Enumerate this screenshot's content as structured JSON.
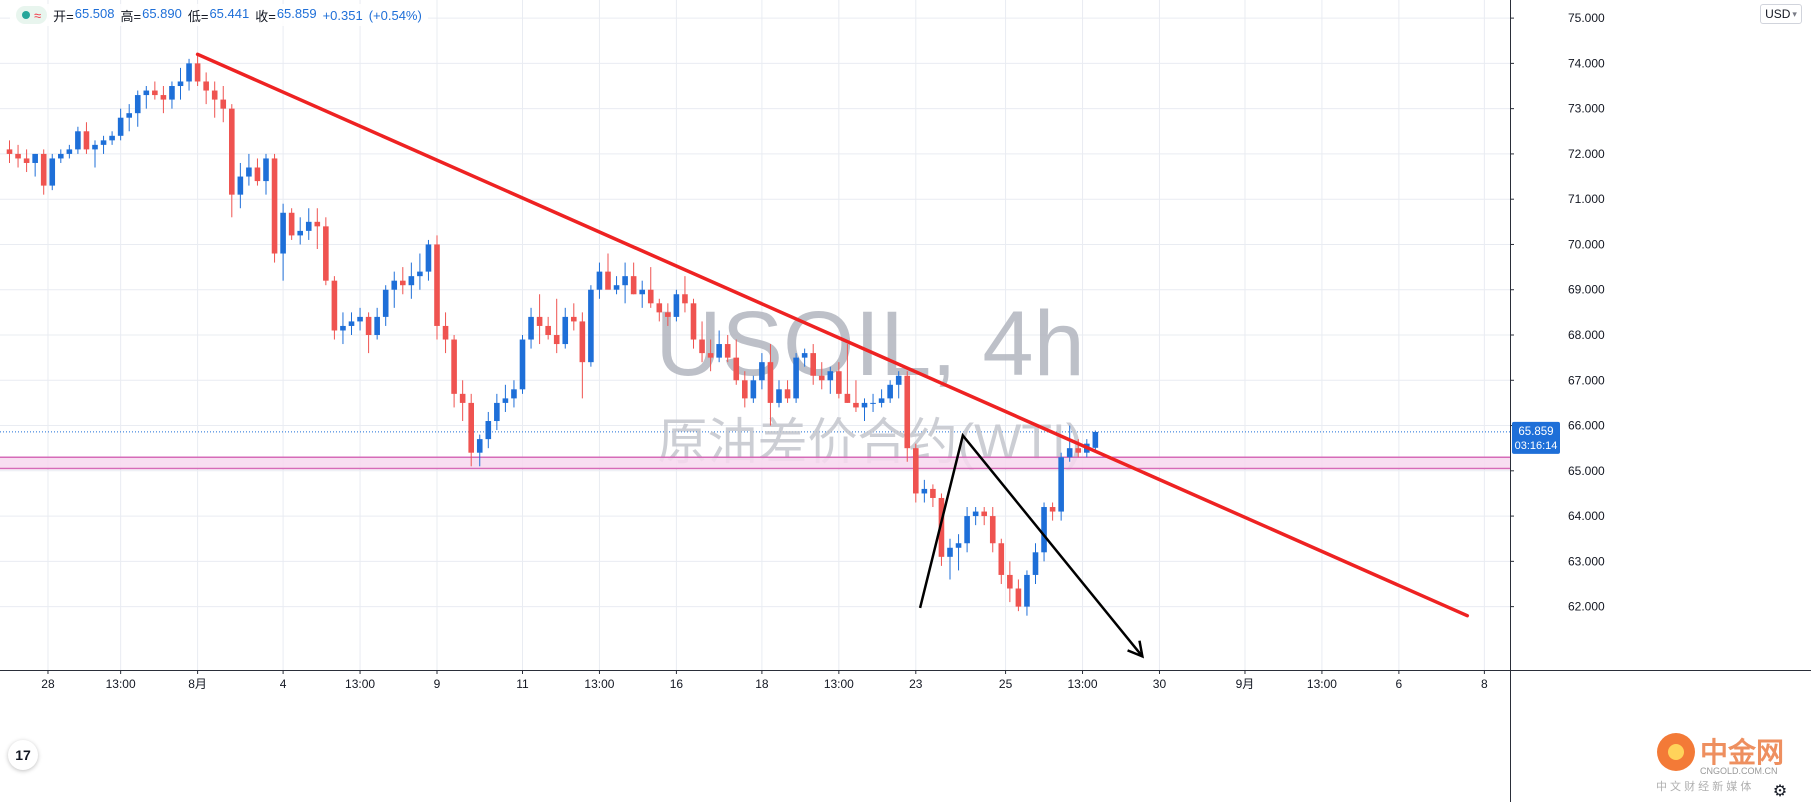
{
  "header": {
    "status_wave": "≈",
    "open_label": "开=",
    "open_value": "65.508",
    "high_label": "高=",
    "high_value": "65.890",
    "low_label": "低=",
    "low_value": "65.441",
    "close_label": "收=",
    "close_value": "65.859",
    "change_value": "+0.351",
    "change_pct": "(+0.54%)"
  },
  "currency": {
    "label": "USD",
    "caret": "▾"
  },
  "watermark": {
    "line1": "USOIL, 4h",
    "line2": "原油差价合约(WTI)"
  },
  "current_price": {
    "value": "65.859",
    "countdown": "03:16:14"
  },
  "logo": {
    "tv_text": "17",
    "cngold_name": "中金网",
    "cngold_url": "CNGOLD.COM.CN",
    "cngold_sub": "中 文 财 经 新 媒 体"
  },
  "colors": {
    "up": "#1e6fd8",
    "down": "#ef5350",
    "trendline": "#ee2222",
    "projection": "#000000",
    "zone_fill": "#f7d8ee",
    "zone_border": "#d66bb8",
    "price_tag": "#1e6fd8",
    "grid": "#e9ecf2"
  },
  "chart_data": {
    "type": "candlestick",
    "symbol": "USOIL",
    "interval": "4h",
    "ylim": [
      60.6,
      75.4
    ],
    "y_ticks": [
      62,
      63,
      64,
      65,
      66,
      67,
      68,
      69,
      70,
      71,
      72,
      73,
      74,
      75
    ],
    "y_tick_labels": [
      "62.000",
      "63.000",
      "64.000",
      "65.000",
      "66.000",
      "67.000",
      "68.000",
      "69.000",
      "70.000",
      "71.000",
      "72.000",
      "73.000",
      "74.000",
      "75.000"
    ],
    "x_ticks": [
      {
        "bar": 4.5,
        "label": "28"
      },
      {
        "bar": 13,
        "label": "13:00"
      },
      {
        "bar": 22,
        "label": "8月"
      },
      {
        "bar": 32,
        "label": "4"
      },
      {
        "bar": 41,
        "label": "13:00"
      },
      {
        "bar": 50,
        "label": "9"
      },
      {
        "bar": 60,
        "label": "11"
      },
      {
        "bar": 69,
        "label": "13:00"
      },
      {
        "bar": 78,
        "label": "16"
      },
      {
        "bar": 88,
        "label": "18"
      },
      {
        "bar": 97,
        "label": "13:00"
      },
      {
        "bar": 106,
        "label": "23"
      },
      {
        "bar": 116.5,
        "label": "25"
      },
      {
        "bar": 125.5,
        "label": "13:00"
      },
      {
        "bar": 134.5,
        "label": "30"
      },
      {
        "bar": 144.5,
        "label": "9月"
      },
      {
        "bar": 153.5,
        "label": "13:00"
      },
      {
        "bar": 162.5,
        "label": "6"
      },
      {
        "bar": 172.5,
        "label": "8"
      }
    ],
    "candles": [
      [
        72.1,
        72.3,
        71.8,
        72.0
      ],
      [
        72.0,
        72.2,
        71.7,
        71.9
      ],
      [
        71.9,
        72.1,
        71.6,
        71.8
      ],
      [
        71.8,
        72.0,
        71.5,
        72.0
      ],
      [
        72.0,
        72.1,
        71.1,
        71.3
      ],
      [
        71.3,
        72.0,
        71.2,
        71.9
      ],
      [
        71.9,
        72.1,
        71.8,
        72.0
      ],
      [
        72.0,
        72.2,
        71.9,
        72.1
      ],
      [
        72.1,
        72.6,
        72.0,
        72.5
      ],
      [
        72.5,
        72.7,
        72.0,
        72.1
      ],
      [
        72.1,
        72.3,
        71.7,
        72.2
      ],
      [
        72.2,
        72.4,
        72.0,
        72.3
      ],
      [
        72.3,
        72.5,
        72.2,
        72.4
      ],
      [
        72.4,
        73.0,
        72.3,
        72.8
      ],
      [
        72.8,
        73.1,
        72.5,
        72.9
      ],
      [
        72.9,
        73.4,
        72.6,
        73.3
      ],
      [
        73.3,
        73.5,
        73.0,
        73.4
      ],
      [
        73.4,
        73.6,
        73.2,
        73.3
      ],
      [
        73.3,
        73.5,
        72.9,
        73.2
      ],
      [
        73.2,
        73.6,
        73.0,
        73.5
      ],
      [
        73.5,
        73.9,
        73.2,
        73.6
      ],
      [
        73.6,
        74.1,
        73.4,
        74.0
      ],
      [
        74.0,
        74.2,
        73.5,
        73.6
      ],
      [
        73.6,
        73.8,
        73.1,
        73.4
      ],
      [
        73.4,
        73.6,
        72.8,
        73.2
      ],
      [
        73.2,
        73.5,
        72.7,
        73.0
      ],
      [
        73.0,
        73.1,
        70.6,
        71.1
      ],
      [
        71.1,
        71.8,
        70.8,
        71.5
      ],
      [
        71.5,
        72.0,
        71.3,
        71.7
      ],
      [
        71.7,
        71.9,
        71.3,
        71.4
      ],
      [
        71.4,
        72.0,
        71.1,
        71.9
      ],
      [
        71.9,
        72.0,
        69.6,
        69.8
      ],
      [
        69.8,
        70.9,
        69.2,
        70.7
      ],
      [
        70.7,
        70.8,
        70.1,
        70.2
      ],
      [
        70.2,
        70.6,
        70.0,
        70.3
      ],
      [
        70.3,
        70.8,
        70.1,
        70.5
      ],
      [
        70.5,
        70.8,
        69.9,
        70.4
      ],
      [
        70.4,
        70.6,
        69.1,
        69.2
      ],
      [
        69.2,
        69.3,
        67.9,
        68.1
      ],
      [
        68.1,
        68.5,
        67.8,
        68.2
      ],
      [
        68.2,
        68.5,
        68.0,
        68.3
      ],
      [
        68.3,
        68.6,
        68.1,
        68.4
      ],
      [
        68.4,
        68.5,
        67.6,
        68.0
      ],
      [
        68.0,
        68.6,
        67.9,
        68.4
      ],
      [
        68.4,
        69.1,
        68.2,
        69.0
      ],
      [
        69.0,
        69.4,
        68.6,
        69.2
      ],
      [
        69.2,
        69.5,
        68.9,
        69.1
      ],
      [
        69.1,
        69.6,
        68.8,
        69.3
      ],
      [
        69.3,
        69.8,
        69.0,
        69.4
      ],
      [
        69.4,
        70.1,
        69.2,
        70.0
      ],
      [
        70.0,
        70.2,
        67.9,
        68.2
      ],
      [
        68.2,
        68.5,
        67.6,
        67.9
      ],
      [
        67.9,
        68.0,
        66.4,
        66.7
      ],
      [
        66.7,
        67.0,
        66.1,
        66.5
      ],
      [
        66.5,
        66.7,
        65.1,
        65.4
      ],
      [
        65.4,
        65.8,
        65.1,
        65.7
      ],
      [
        65.7,
        66.3,
        65.5,
        66.1
      ],
      [
        66.1,
        66.7,
        65.9,
        66.5
      ],
      [
        66.5,
        66.9,
        66.3,
        66.6
      ],
      [
        66.6,
        67.0,
        66.4,
        66.8
      ],
      [
        66.8,
        68.0,
        66.7,
        67.9
      ],
      [
        67.9,
        68.6,
        67.7,
        68.4
      ],
      [
        68.4,
        68.9,
        67.8,
        68.2
      ],
      [
        68.2,
        68.4,
        67.9,
        68.0
      ],
      [
        68.0,
        68.8,
        67.6,
        67.8
      ],
      [
        67.8,
        68.6,
        67.7,
        68.4
      ],
      [
        68.4,
        68.7,
        68.1,
        68.3
      ],
      [
        68.3,
        68.5,
        66.6,
        67.4
      ],
      [
        67.4,
        69.1,
        67.3,
        69.0
      ],
      [
        69.0,
        69.6,
        68.8,
        69.4
      ],
      [
        69.4,
        69.8,
        69.1,
        69.0
      ],
      [
        69.0,
        69.3,
        68.9,
        69.1
      ],
      [
        69.1,
        69.6,
        68.7,
        69.3
      ],
      [
        69.3,
        69.6,
        68.9,
        68.9
      ],
      [
        68.9,
        69.2,
        68.6,
        69.0
      ],
      [
        69.0,
        69.5,
        68.6,
        68.7
      ],
      [
        68.7,
        68.8,
        68.3,
        68.5
      ],
      [
        68.5,
        68.7,
        68.2,
        68.4
      ],
      [
        68.4,
        69.0,
        68.3,
        68.9
      ],
      [
        68.9,
        69.3,
        68.5,
        68.7
      ],
      [
        68.7,
        68.8,
        67.7,
        67.9
      ],
      [
        67.9,
        68.3,
        67.4,
        67.6
      ],
      [
        67.6,
        67.9,
        67.2,
        67.5
      ],
      [
        67.5,
        68.1,
        67.4,
        67.8
      ],
      [
        67.8,
        68.0,
        67.4,
        67.5
      ],
      [
        67.5,
        67.9,
        66.9,
        67.0
      ],
      [
        67.0,
        67.2,
        66.4,
        66.6
      ],
      [
        66.6,
        67.1,
        66.5,
        67.0
      ],
      [
        67.0,
        67.6,
        66.8,
        67.4
      ],
      [
        67.4,
        67.8,
        66.0,
        66.5
      ],
      [
        66.5,
        67.0,
        66.4,
        66.8
      ],
      [
        66.8,
        67.0,
        66.5,
        66.6
      ],
      [
        66.6,
        67.6,
        66.5,
        67.5
      ],
      [
        67.5,
        67.7,
        67.3,
        67.6
      ],
      [
        67.6,
        67.8,
        66.9,
        67.1
      ],
      [
        67.1,
        67.4,
        66.8,
        67.0
      ],
      [
        67.0,
        67.3,
        66.7,
        67.2
      ],
      [
        67.2,
        67.4,
        66.6,
        66.7
      ],
      [
        66.7,
        67.8,
        66.5,
        66.5
      ],
      [
        66.5,
        67.0,
        66.3,
        66.4
      ],
      [
        66.4,
        66.6,
        66.1,
        66.5
      ],
      [
        66.5,
        66.7,
        66.3,
        66.5
      ],
      [
        66.5,
        66.8,
        66.4,
        66.6
      ],
      [
        66.6,
        67.0,
        66.5,
        66.9
      ],
      [
        66.9,
        67.2,
        66.6,
        67.1
      ],
      [
        67.1,
        67.2,
        65.2,
        65.5
      ],
      [
        65.5,
        65.6,
        64.3,
        64.5
      ],
      [
        64.5,
        64.8,
        64.3,
        64.6
      ],
      [
        64.6,
        64.7,
        64.2,
        64.4
      ],
      [
        64.4,
        64.5,
        62.9,
        63.1
      ],
      [
        63.1,
        63.5,
        62.6,
        63.3
      ],
      [
        63.3,
        63.6,
        62.8,
        63.4
      ],
      [
        63.4,
        64.2,
        63.2,
        64.0
      ],
      [
        64.0,
        64.2,
        63.8,
        64.1
      ],
      [
        64.1,
        64.2,
        63.8,
        64.0
      ],
      [
        64.0,
        64.2,
        63.2,
        63.4
      ],
      [
        63.4,
        63.5,
        62.5,
        62.7
      ],
      [
        62.7,
        63.0,
        62.1,
        62.4
      ],
      [
        62.4,
        62.6,
        61.9,
        62.0
      ],
      [
        62.0,
        62.8,
        61.8,
        62.7
      ],
      [
        62.7,
        63.4,
        62.5,
        63.2
      ],
      [
        63.2,
        64.3,
        63.0,
        64.2
      ],
      [
        64.2,
        64.3,
        63.9,
        64.1
      ],
      [
        64.1,
        65.4,
        63.9,
        65.3
      ],
      [
        65.3,
        66.0,
        65.2,
        65.5
      ],
      [
        65.5,
        65.7,
        65.3,
        65.4
      ],
      [
        65.4,
        65.7,
        65.3,
        65.6
      ],
      [
        65.508,
        65.89,
        65.441,
        65.859
      ]
    ],
    "trendline": {
      "from": [
        22,
        74.2
      ],
      "to": [
        170.5,
        61.8
      ]
    },
    "projection": [
      [
        106.5,
        61.97
      ],
      [
        111.5,
        65.78
      ],
      [
        132.5,
        60.9
      ]
    ],
    "zone": [
      65.05,
      65.3
    ],
    "last_price": 65.859
  }
}
